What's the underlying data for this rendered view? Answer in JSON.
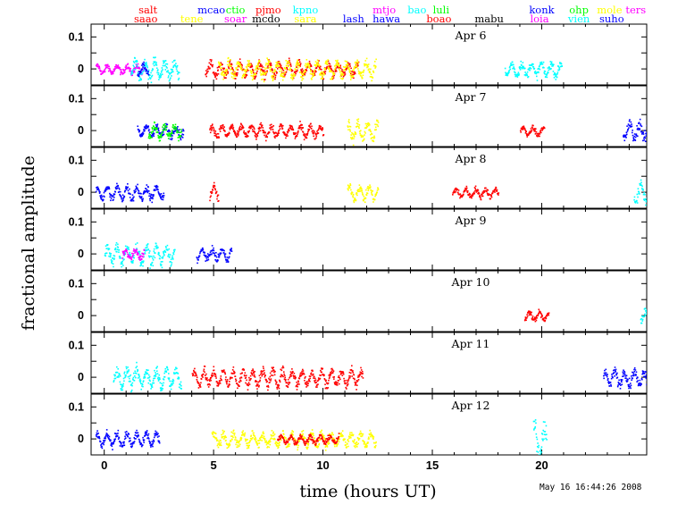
{
  "chart_data": {
    "type": "scatter",
    "xlabel": "time (hours UT)",
    "ylabel": "fractional amplitude",
    "xlim": [
      -0.6,
      24.8
    ],
    "xticks": [
      0,
      5,
      10,
      15,
      20
    ],
    "ylim": [
      -0.05,
      0.14
    ],
    "yticks": [
      0,
      0.1
    ],
    "ytick_labels": [
      "0",
      "0.1"
    ],
    "timestamp": "May 16 16:44:26 2008",
    "sites": [
      {
        "name": "salt",
        "hour": 2.0,
        "row": 0,
        "color": "#ff0000"
      },
      {
        "name": "saao",
        "hour": 1.9,
        "row": 1,
        "color": "#ff0000"
      },
      {
        "name": "tene",
        "hour": 4.0,
        "row": 1,
        "color": "#ffff00"
      },
      {
        "name": "mcao",
        "hour": 4.9,
        "row": 0,
        "color": "#0000ff"
      },
      {
        "name": "ctio",
        "hour": 6.0,
        "row": 0,
        "color": "#00ff00"
      },
      {
        "name": "soar",
        "hour": 6.0,
        "row": 1,
        "color": "#ff00ff"
      },
      {
        "name": "pjmo",
        "hour": 7.5,
        "row": 0,
        "color": "#ff0000"
      },
      {
        "name": "mcdo",
        "hour": 7.4,
        "row": 1,
        "color": "#000000"
      },
      {
        "name": "kpno",
        "hour": 9.2,
        "row": 0,
        "color": "#00ffff"
      },
      {
        "name": "sara",
        "hour": 9.2,
        "row": 1,
        "color": "#ffff00"
      },
      {
        "name": "lash",
        "hour": 11.4,
        "row": 1,
        "color": "#0000ff"
      },
      {
        "name": "mtjo",
        "hour": 12.8,
        "row": 0,
        "color": "#ff00ff"
      },
      {
        "name": "hawa",
        "hour": 12.9,
        "row": 1,
        "color": "#0000ff"
      },
      {
        "name": "bao",
        "hour": 14.3,
        "row": 0,
        "color": "#00ffff"
      },
      {
        "name": "luli",
        "hour": 15.4,
        "row": 0,
        "color": "#00ff00"
      },
      {
        "name": "boao",
        "hour": 15.3,
        "row": 1,
        "color": "#ff0000"
      },
      {
        "name": "mabu",
        "hour": 17.6,
        "row": 1,
        "color": "#000000"
      },
      {
        "name": "konk",
        "hour": 20.0,
        "row": 0,
        "color": "#0000ff"
      },
      {
        "name": "loia",
        "hour": 19.9,
        "row": 1,
        "color": "#ff00ff"
      },
      {
        "name": "ohp",
        "hour": 21.7,
        "row": 0,
        "color": "#00ff00"
      },
      {
        "name": "vien",
        "hour": 21.7,
        "row": 1,
        "color": "#00ffff"
      },
      {
        "name": "mole",
        "hour": 23.1,
        "row": 0,
        "color": "#ffff00"
      },
      {
        "name": "ters",
        "hour": 24.3,
        "row": 0,
        "color": "#ff00ff"
      },
      {
        "name": "suho",
        "hour": 23.2,
        "row": 1,
        "color": "#0000ff"
      }
    ],
    "panels": [
      {
        "label": "Apr 6",
        "segments": [
          {
            "color": "#ff00ff",
            "start": -0.4,
            "end": 1.8,
            "amp": 0.02
          },
          {
            "color": "#00ffff",
            "start": 1.2,
            "end": 3.4,
            "amp": 0.04
          },
          {
            "color": "#0000ff",
            "start": 1.5,
            "end": 2.0,
            "amp": 0.02
          },
          {
            "color": "#ff0000",
            "start": 4.6,
            "end": 11.6,
            "amp": 0.03
          },
          {
            "color": "#ffff00",
            "start": 5.2,
            "end": 12.4,
            "amp": 0.035
          },
          {
            "color": "#00ffff",
            "start": 18.3,
            "end": 20.9,
            "amp": 0.03
          }
        ]
      },
      {
        "label": "Apr 7",
        "segments": [
          {
            "color": "#0000ff",
            "start": 1.5,
            "end": 3.6,
            "amp": 0.025
          },
          {
            "color": "#00ff00",
            "start": 2.0,
            "end": 3.5,
            "amp": 0.03
          },
          {
            "color": "#ff0000",
            "start": 4.8,
            "end": 10.0,
            "amp": 0.025
          },
          {
            "color": "#ffff00",
            "start": 11.1,
            "end": 12.5,
            "amp": 0.04
          },
          {
            "color": "#ff0000",
            "start": 19.0,
            "end": 20.1,
            "amp": 0.02
          },
          {
            "color": "#0000ff",
            "start": 23.7,
            "end": 24.8,
            "amp": 0.04
          }
        ]
      },
      {
        "label": "Apr 8",
        "segments": [
          {
            "color": "#0000ff",
            "start": -0.4,
            "end": 2.7,
            "amp": 0.03
          },
          {
            "color": "#ff0000",
            "start": 4.8,
            "end": 5.2,
            "amp": 0.03
          },
          {
            "color": "#ffff00",
            "start": 11.1,
            "end": 12.5,
            "amp": 0.03
          },
          {
            "color": "#ff0000",
            "start": 15.9,
            "end": 18.0,
            "amp": 0.02
          },
          {
            "color": "#00ffff",
            "start": 24.2,
            "end": 24.8,
            "amp": 0.04
          }
        ]
      },
      {
        "label": "Apr 9",
        "segments": [
          {
            "color": "#00ffff",
            "start": 0.0,
            "end": 3.2,
            "amp": 0.04
          },
          {
            "color": "#ff00ff",
            "start": 0.8,
            "end": 1.8,
            "amp": 0.02
          },
          {
            "color": "#0000ff",
            "start": 4.2,
            "end": 5.8,
            "amp": 0.025
          }
        ]
      },
      {
        "label": "Apr 10",
        "segments": [
          {
            "color": "#ff0000",
            "start": 19.2,
            "end": 20.3,
            "amp": 0.02
          },
          {
            "color": "#00ffff",
            "start": 24.5,
            "end": 24.8,
            "amp": 0.03
          }
        ]
      },
      {
        "label": "Apr 11",
        "segments": [
          {
            "color": "#00ffff",
            "start": 0.4,
            "end": 3.5,
            "amp": 0.04
          },
          {
            "color": "#ff0000",
            "start": 4.0,
            "end": 11.8,
            "amp": 0.035
          },
          {
            "color": "#0000ff",
            "start": 22.8,
            "end": 24.8,
            "amp": 0.035
          }
        ]
      },
      {
        "label": "Apr 12",
        "segments": [
          {
            "color": "#0000ff",
            "start": -0.4,
            "end": 2.5,
            "amp": 0.03
          },
          {
            "color": "#ffff00",
            "start": 4.9,
            "end": 12.4,
            "amp": 0.03
          },
          {
            "color": "#ff0000",
            "start": 7.9,
            "end": 10.7,
            "amp": 0.018
          },
          {
            "color": "#00ffff",
            "start": 19.6,
            "end": 20.2,
            "amp": 0.07
          }
        ]
      }
    ]
  }
}
